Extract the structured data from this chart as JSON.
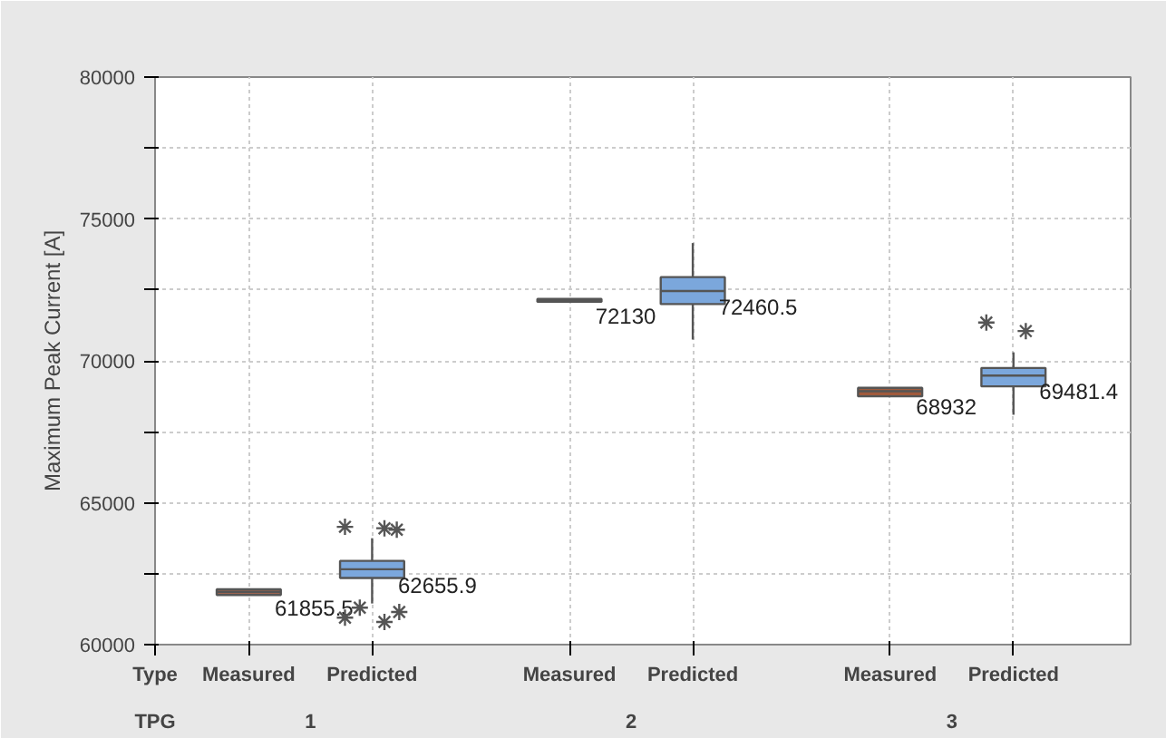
{
  "chart_data": {
    "type": "box",
    "ylabel": "Maximum Peak Current [A]",
    "categories": [
      "Measured",
      "Predicted",
      "Measured",
      "Predicted",
      "Measured",
      "Predicted"
    ],
    "colors": [
      "#9a6450",
      "#7ba7dc",
      "#6e5a52",
      "#7ba7dc",
      "#a05a3c",
      "#7ba7dc"
    ],
    "boxes": [
      {
        "low": 61750,
        "q1": 61750,
        "median": 61855.5,
        "q3": 61950,
        "high": 61950
      },
      {
        "low": 61450,
        "q1": 62350,
        "median": 62655.9,
        "q3": 62950,
        "high": 63750,
        "outliers": [
          64150,
          64100,
          64050,
          61300,
          60950,
          60800,
          61150
        ]
      },
      {
        "low": 72080,
        "q1": 72080,
        "median": 72130,
        "q3": 72180,
        "high": 72180
      },
      {
        "low": 70750,
        "q1": 72000,
        "median": 72460.5,
        "q3": 72950,
        "high": 74150
      },
      {
        "low": 68750,
        "q1": 68750,
        "median": 68932,
        "q3": 69050,
        "high": 69050
      },
      {
        "low": 68100,
        "q1": 69100,
        "median": 69481.4,
        "q3": 69750,
        "high": 70300,
        "outliers": [
          71350,
          71050
        ]
      }
    ],
    "ylim": [
      60000,
      80000
    ],
    "yticks": [
      60000,
      {
        "value": 62500,
        "label": null
      },
      65000,
      {
        "value": 67500,
        "label": null
      },
      70000,
      {
        "value": 72500,
        "label": null
      },
      75000,
      {
        "value": 77500,
        "label": null
      },
      80000
    ],
    "grid": true,
    "annotations": [
      "Type",
      "TPG",
      "1",
      "2",
      "3",
      "61855.5",
      "62655.9",
      "72130",
      "72460.5",
      "68932",
      "69481.4"
    ]
  }
}
